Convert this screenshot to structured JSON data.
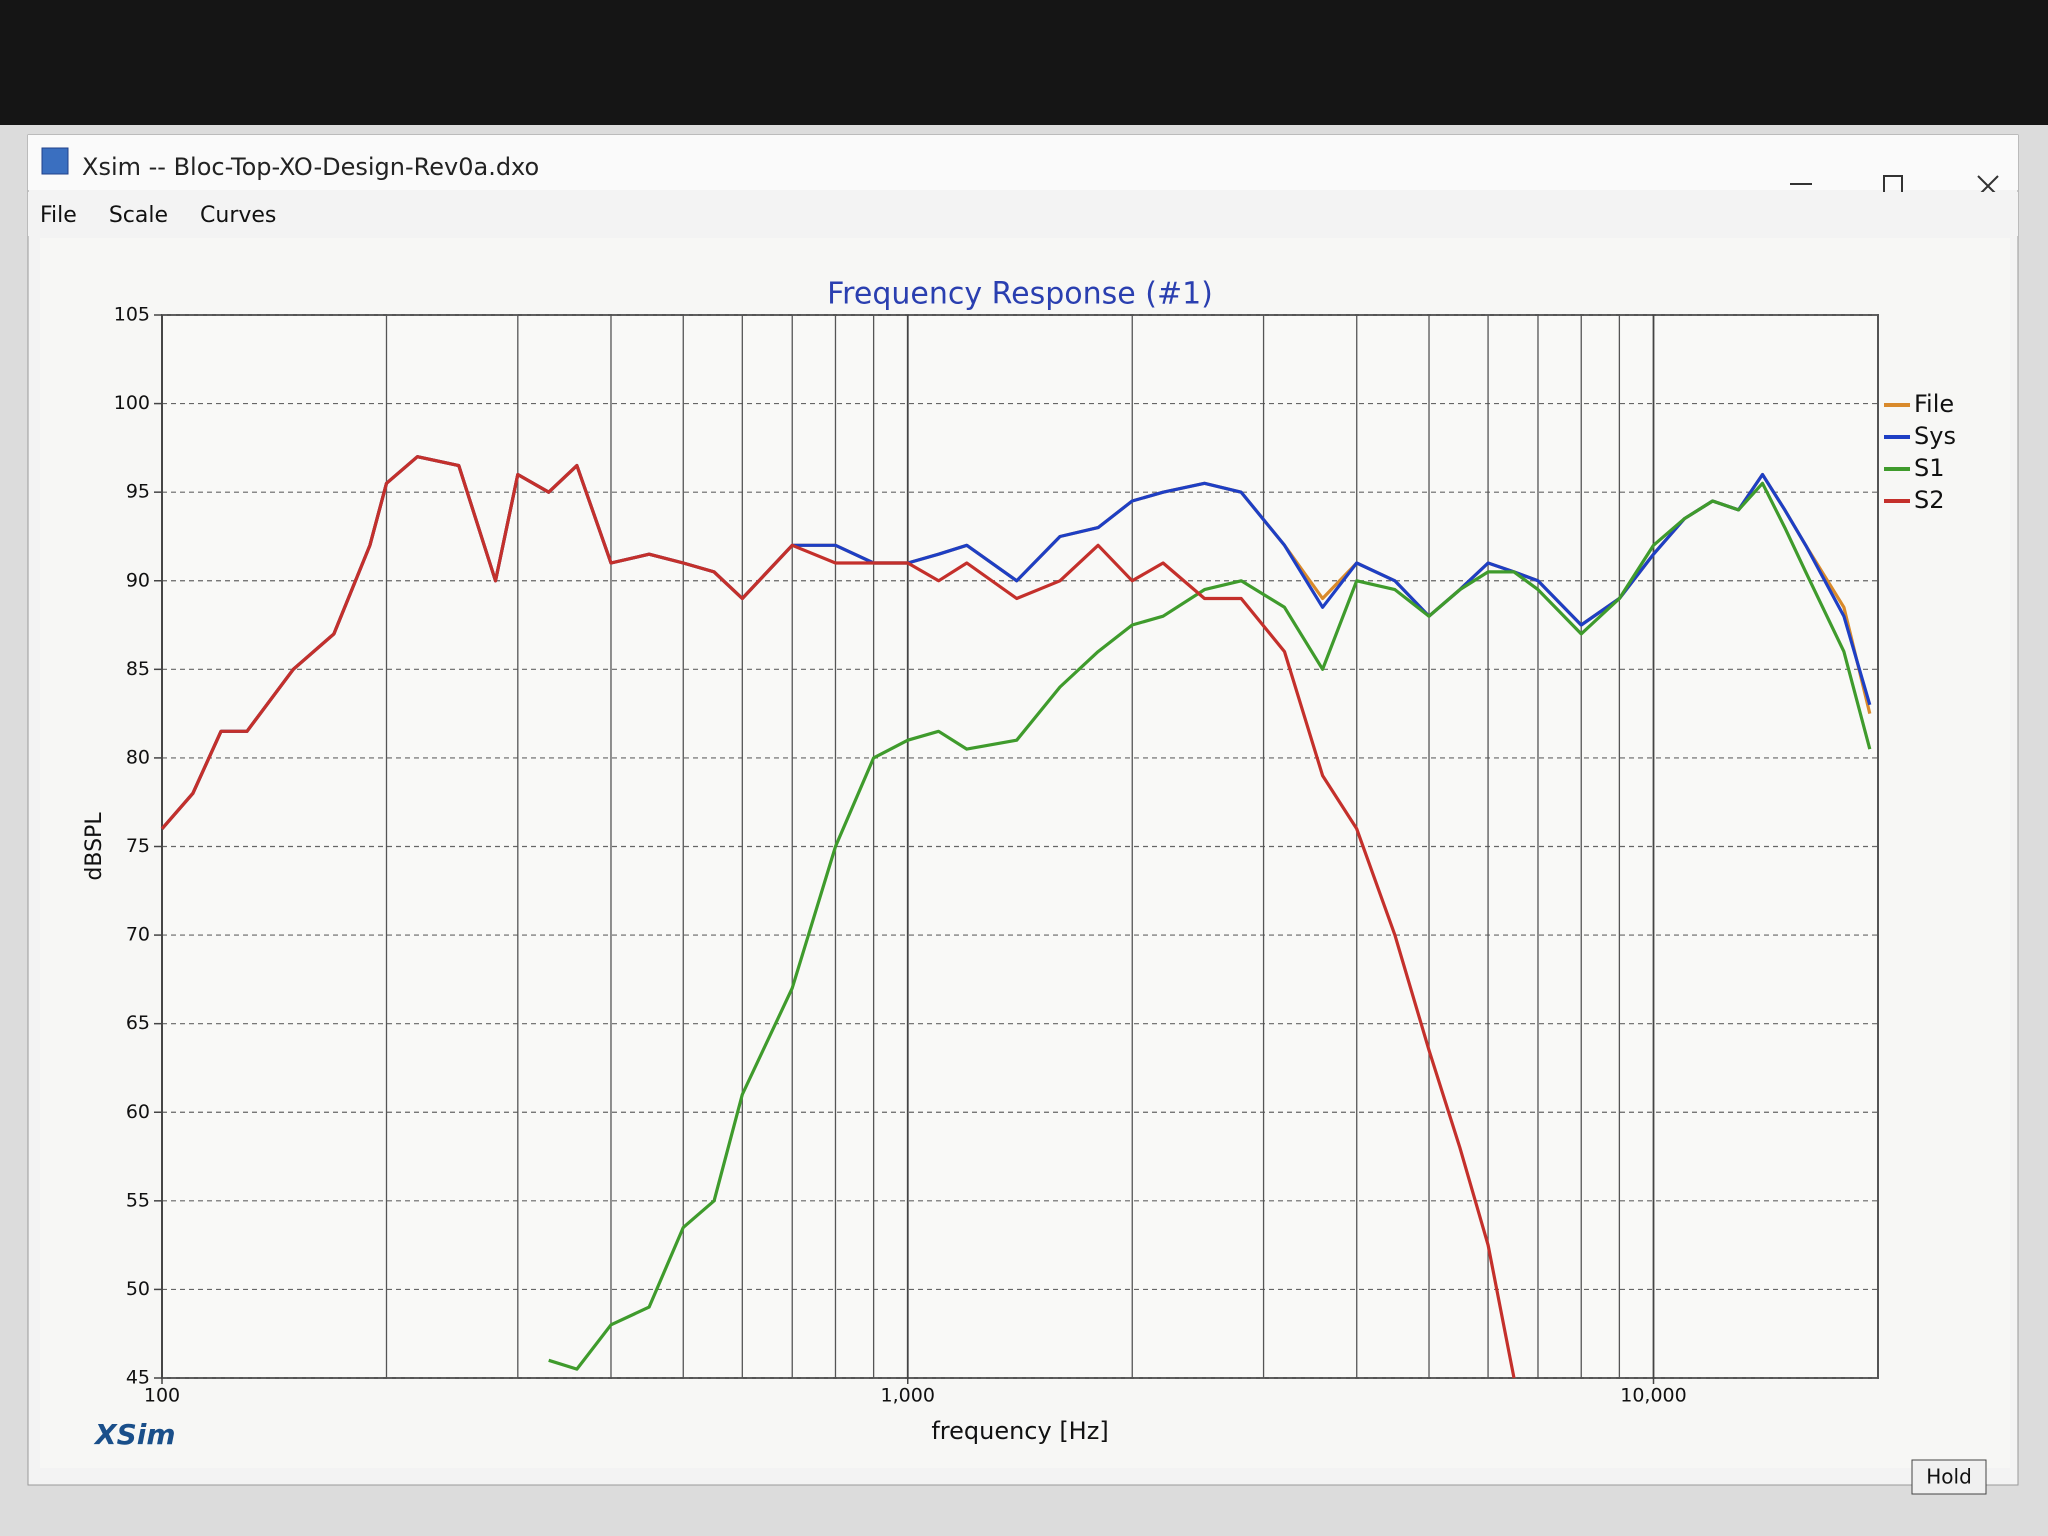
{
  "window": {
    "title": "Xsim -- Bloc-Top-XO-Design-Rev0a.dxo",
    "menu": [
      "File",
      "Scale",
      "Curves"
    ]
  },
  "chart_data": {
    "type": "line",
    "title": "Frequency Response (#1)",
    "x_label": "frequency [Hz]",
    "y_label": "dBSPL",
    "log_x": true,
    "grid": true,
    "legend": "right",
    "xlim": [
      100,
      20000
    ],
    "xticks": [
      100,
      {
        "value": 1000,
        "label": "1,000"
      },
      {
        "value": 10000,
        "label": "10,000"
      }
    ],
    "xgrid": [
      200,
      300,
      400,
      500,
      600,
      700,
      800,
      900,
      2000,
      3000,
      4000,
      5000,
      6000,
      7000,
      8000,
      9000,
      20000
    ],
    "ylim": [
      45,
      105
    ],
    "yticks": [
      45,
      50,
      55,
      60,
      65,
      70,
      75,
      80,
      85,
      90,
      95,
      100,
      105
    ],
    "x": [
      100,
      110,
      120,
      130,
      150,
      170,
      190,
      200,
      220,
      250,
      280,
      300,
      330,
      360,
      400,
      450,
      500,
      550,
      600,
      700,
      800,
      900,
      1000,
      1100,
      1200,
      1400,
      1600,
      1800,
      2000,
      2200,
      2500,
      2800,
      3200,
      3600,
      4000,
      4500,
      5000,
      5500,
      6000,
      6500,
      7000,
      8000,
      9000,
      10000,
      11000,
      12000,
      13000,
      14000,
      15000,
      16000,
      18000,
      19500
    ],
    "series": [
      {
        "name": "File",
        "color": "#d98a2b",
        "values": [
          76,
          78,
          81.5,
          81.5,
          85,
          87,
          92,
          95.5,
          97,
          96.5,
          90,
          96,
          95,
          96.5,
          91,
          91.5,
          91,
          90.5,
          89,
          92,
          92,
          91,
          91,
          91.5,
          92,
          90,
          92.5,
          93,
          94.5,
          95,
          95.5,
          95,
          92,
          89,
          91,
          90,
          88,
          89.5,
          91,
          90.5,
          90,
          87.5,
          89,
          91.5,
          93.5,
          94.5,
          94,
          96,
          94,
          92,
          88.5,
          82.5
        ]
      },
      {
        "name": "Sys",
        "color": "#1e3fc4",
        "values": [
          76,
          78,
          81.5,
          81.5,
          85,
          87,
          92,
          95.5,
          97,
          96.5,
          90,
          96,
          95,
          96.5,
          91,
          91.5,
          91,
          90.5,
          89,
          92,
          92,
          91,
          91,
          91.5,
          92,
          90,
          92.5,
          93,
          94.5,
          95,
          95.5,
          95,
          92,
          88.5,
          91,
          90,
          88,
          89.5,
          91,
          90.5,
          90,
          87.5,
          89,
          91.5,
          93.5,
          94.5,
          94,
          96,
          94,
          92,
          88,
          83
        ]
      },
      {
        "name": "S1",
        "color": "#3f9b2c",
        "values": [
          null,
          null,
          null,
          null,
          null,
          null,
          null,
          null,
          null,
          null,
          null,
          null,
          46,
          45.5,
          48,
          49,
          53.5,
          55,
          61,
          67,
          75,
          80,
          81,
          81.5,
          80.5,
          81,
          84,
          86,
          87.5,
          88,
          89.5,
          90,
          88.5,
          85,
          90,
          89.5,
          88,
          89.5,
          90.5,
          90.5,
          89.5,
          87,
          89,
          92,
          93.5,
          94.5,
          94,
          95.5,
          93,
          90.5,
          86,
          80.5
        ]
      },
      {
        "name": "S2",
        "color": "#c4302b",
        "values": [
          76,
          78,
          81.5,
          81.5,
          85,
          87,
          92,
          95.5,
          97,
          96.5,
          90,
          96,
          95,
          96.5,
          91,
          91.5,
          91,
          90.5,
          89,
          92,
          91,
          91,
          91,
          90,
          91,
          89,
          90,
          92,
          90,
          91,
          89,
          89,
          86,
          79,
          76,
          70,
          63.5,
          58,
          52.5,
          45,
          null,
          null,
          null,
          null,
          null,
          null,
          null,
          null,
          null,
          null,
          null,
          null
        ]
      }
    ]
  },
  "footer": {
    "logo": "XSim",
    "hold": "Hold"
  }
}
